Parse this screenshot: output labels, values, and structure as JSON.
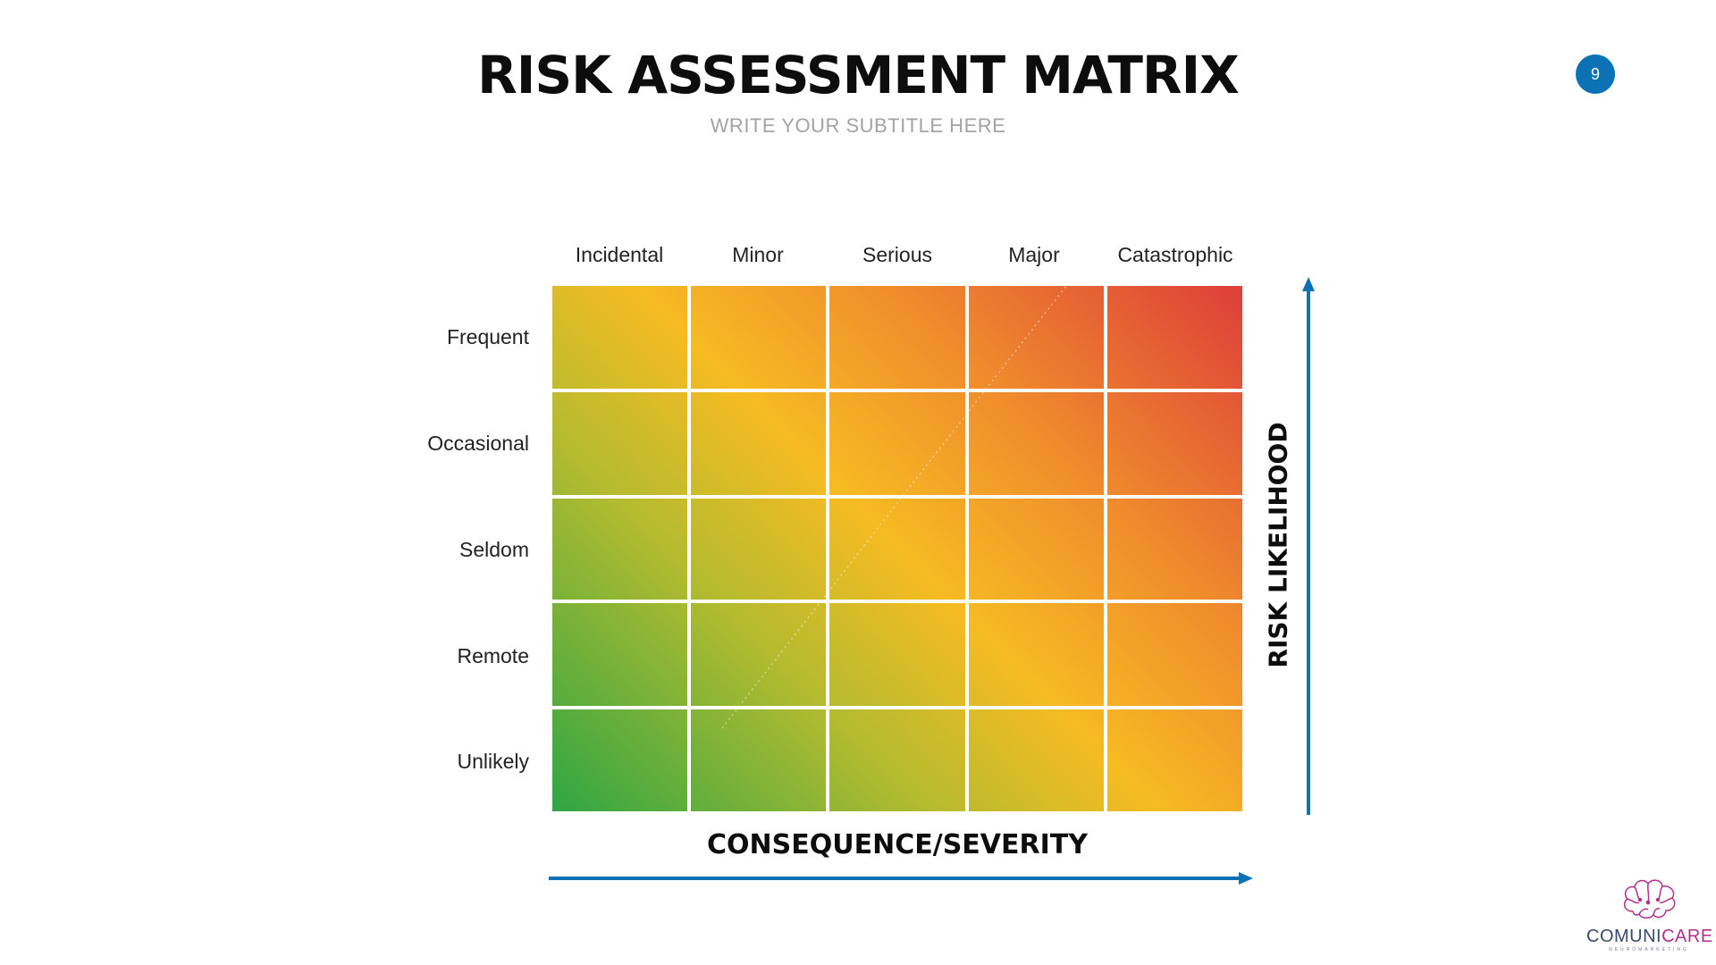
{
  "slide": {
    "title": "RISK ASSESSMENT MATRIX",
    "subtitle": "WRITE YOUR SUBTITLE HERE",
    "page_number": "9"
  },
  "matrix": {
    "columns": [
      "Incidental",
      "Minor",
      "Serious",
      "Major",
      "Catastrophic"
    ],
    "rows": [
      "Frequent",
      "Occasional",
      "Seldom",
      "Remote",
      "Unlikely"
    ],
    "gradient_colors": [
      "#2fa644",
      "#b4bb2f",
      "#f6bb22",
      "#ef8a2d",
      "#dd3f3a"
    ],
    "x_axis_label": "CONSEQUENCE/SEVERITY",
    "y_axis_label": "RISK LIKELIHOOD",
    "axis_color": "#0a72b5"
  },
  "logo": {
    "name_part1": "COMUNI",
    "name_part2": "CARE",
    "tagline": "NEUROMARKETING",
    "icon": "brain-icon"
  }
}
